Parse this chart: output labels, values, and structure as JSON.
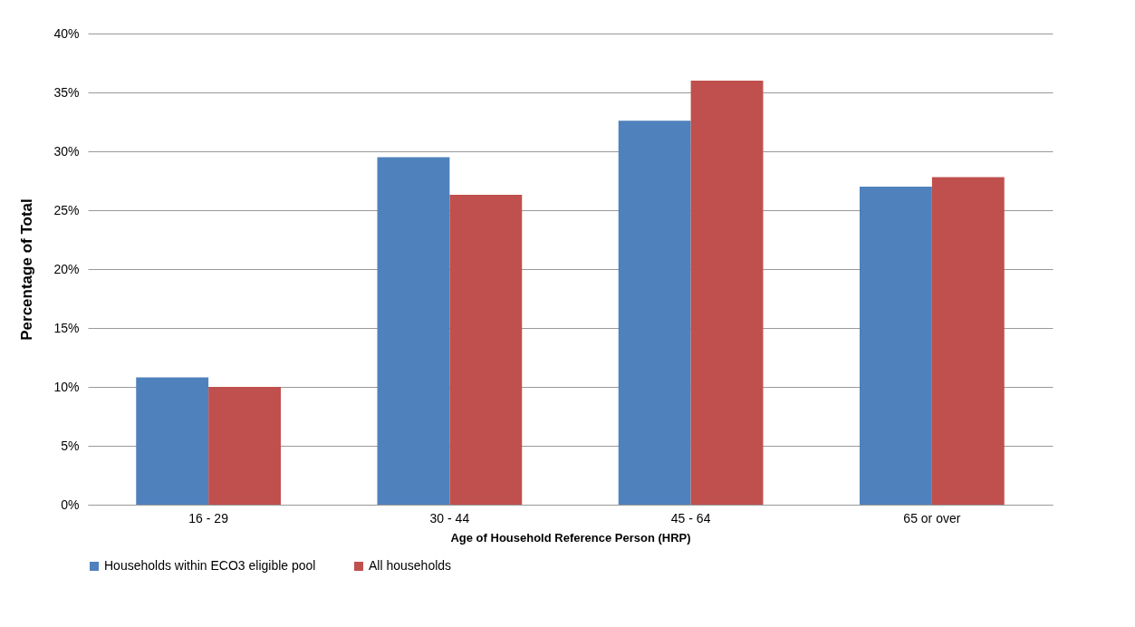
{
  "chart_data": {
    "type": "bar",
    "xlabel": "Age of Household Reference Person (HRP)",
    "ylabel": "Percentage of Total",
    "categories": [
      "16 - 29",
      "30 - 44",
      "45 - 64",
      "65 or over"
    ],
    "series": [
      {
        "name": "Households within ECO3 eligible pool",
        "color": "#4f81bd",
        "values": [
          10.8,
          29.5,
          32.6,
          27.0
        ]
      },
      {
        "name": "All households",
        "color": "#c0504d",
        "values": [
          10.0,
          26.3,
          36.0,
          27.8
        ]
      }
    ],
    "ylim": [
      0,
      40
    ],
    "yticks": [
      {
        "value": 0,
        "label": "0%"
      },
      {
        "value": 5,
        "label": "5%"
      },
      {
        "value": 10,
        "label": "10%"
      },
      {
        "value": 15,
        "label": "15%"
      },
      {
        "value": 20,
        "label": "20%"
      },
      {
        "value": 25,
        "label": "25%"
      },
      {
        "value": 30,
        "label": "30%"
      },
      {
        "value": 35,
        "label": "35%"
      },
      {
        "value": 40,
        "label": "40%"
      }
    ],
    "grid": "y",
    "legend": "bottom"
  }
}
